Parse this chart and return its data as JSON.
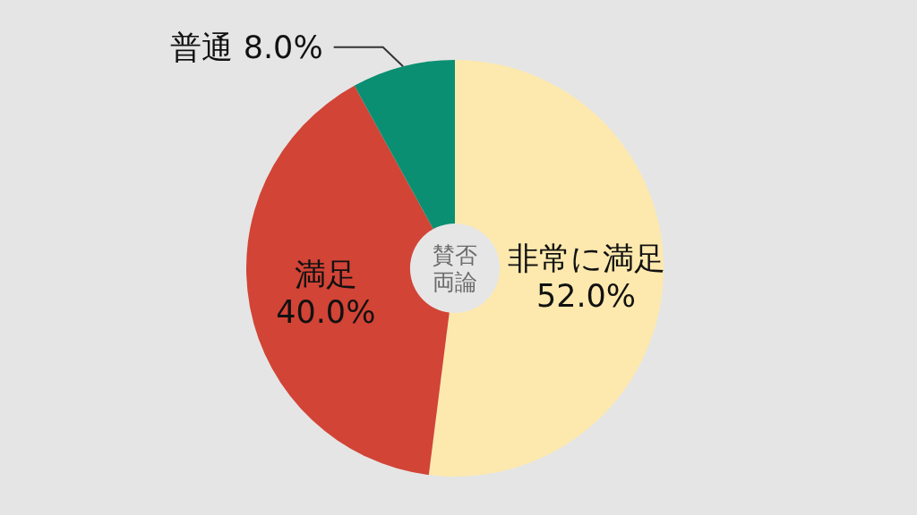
{
  "chart_data": {
    "type": "donut",
    "title": "賛否両論",
    "categories": [
      "非常に満足",
      "満足",
      "普通"
    ],
    "values": [
      52.0,
      40.0,
      8.0
    ],
    "value_labels": [
      "52.0%",
      "40.0%",
      "8.0%"
    ],
    "colors": [
      "#fde9ae",
      "#d24436",
      "#0a8f72"
    ],
    "legend": false
  }
}
